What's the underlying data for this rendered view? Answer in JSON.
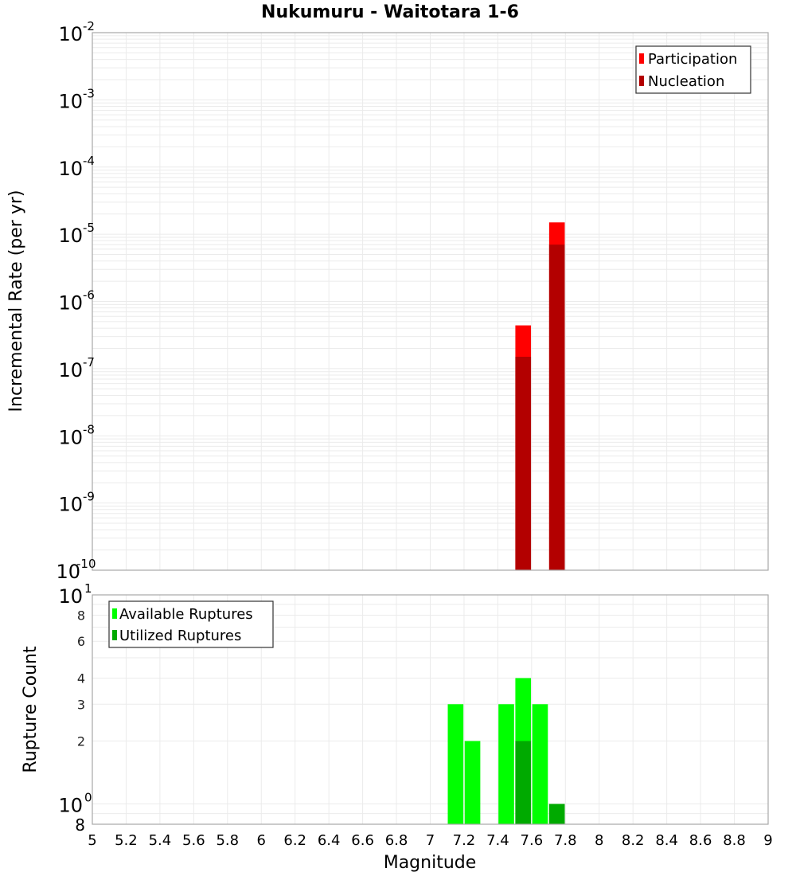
{
  "chart_data": [
    {
      "type": "bar",
      "title": "Nukumuru - Waitotara 1-6",
      "xlabel": "",
      "ylabel": "Incremental Rate (per yr)",
      "yscale": "log",
      "ylim": [
        1e-10,
        0.01
      ],
      "xlim": [
        5,
        9
      ],
      "grid": true,
      "legend_position": "top-right",
      "y_tick_labels": [
        "10^-2",
        "10^-3",
        "10^-4",
        "10^-5",
        "10^-6",
        "10^-7",
        "10^-8",
        "10^-9",
        "10^-10"
      ],
      "bin_width": 0.1,
      "categories": [
        7.55,
        7.75
      ],
      "series": [
        {
          "name": "Participation",
          "color": "#ff0000",
          "values": [
            4.4e-07,
            1.5e-05
          ]
        },
        {
          "name": "Nucleation",
          "color": "#b30000",
          "values": [
            1.5e-07,
            7e-06
          ]
        }
      ]
    },
    {
      "type": "bar",
      "title": "",
      "xlabel": "Magnitude",
      "ylabel": "Rupture Count",
      "yscale": "log",
      "ylim": [
        0.8,
        10
      ],
      "xlim": [
        5,
        9
      ],
      "grid": true,
      "legend_position": "top-left",
      "y_tick_labels": [
        "10^1",
        "8",
        "6",
        "4",
        "3",
        "2",
        "10^0",
        "8"
      ],
      "x_tick_labels": [
        "5",
        "5.2",
        "5.4",
        "5.6",
        "5.8",
        "6",
        "6.2",
        "6.4",
        "6.6",
        "6.8",
        "7",
        "7.2",
        "7.4",
        "7.6",
        "7.8",
        "8",
        "8.2",
        "8.4",
        "8.6",
        "8.8",
        "9"
      ],
      "bin_width": 0.1,
      "categories": [
        7.15,
        7.25,
        7.45,
        7.55,
        7.65,
        7.75
      ],
      "series": [
        {
          "name": "Available Ruptures",
          "color": "#00ff00",
          "values": [
            3,
            2,
            3,
            4,
            3,
            1
          ]
        },
        {
          "name": "Utilized Ruptures",
          "color": "#00aa00",
          "values": [
            0,
            0,
            0,
            2,
            0,
            1
          ]
        }
      ]
    }
  ],
  "labels": {
    "title": "Nukumuru - Waitotara 1-6",
    "top_ylabel": "Incremental Rate (per yr)",
    "bottom_ylabel": "Rupture Count",
    "xlabel": "Magnitude",
    "legend_top": [
      "Participation",
      "Nucleation"
    ],
    "legend_bottom": [
      "Available Ruptures",
      "Utilized Ruptures"
    ]
  }
}
